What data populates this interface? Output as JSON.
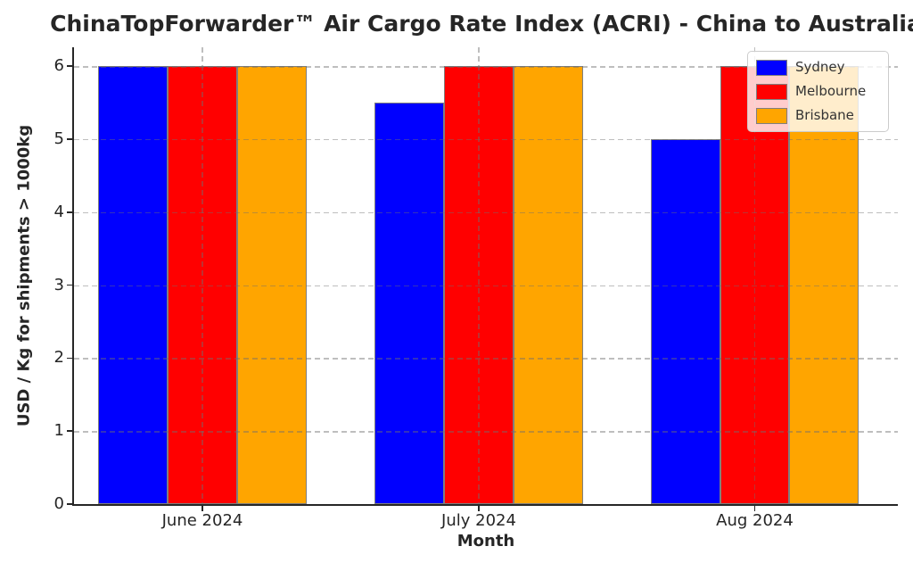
{
  "chart_data": {
    "type": "bar",
    "title": "ChinaTopForwarder™ Air Cargo Rate Index (ACRI) - China to Australia",
    "xlabel": "Month",
    "ylabel": "USD / Kg for shipments > 1000kg",
    "categories": [
      "June 2024",
      "July 2024",
      "Aug 2024"
    ],
    "series": [
      {
        "name": "Sydney",
        "color": "#0000ff",
        "values": [
          6.0,
          5.5,
          5.0
        ]
      },
      {
        "name": "Melbourne",
        "color": "#ff0000",
        "values": [
          6.0,
          6.0,
          6.0
        ]
      },
      {
        "name": "Brisbane",
        "color": "#ffa500",
        "values": [
          6.0,
          6.0,
          6.0
        ]
      }
    ],
    "yticks": [
      0,
      1,
      2,
      3,
      4,
      5,
      6
    ],
    "ylim": [
      0,
      6.3
    ],
    "grid": true,
    "grid_style": "dashed",
    "legend_position": "upper right",
    "style": {
      "bar_edge_color": "#7f7f7f",
      "grid_color": "#c9c9c9",
      "text_color": "#262626",
      "background": "#ffffff"
    }
  }
}
